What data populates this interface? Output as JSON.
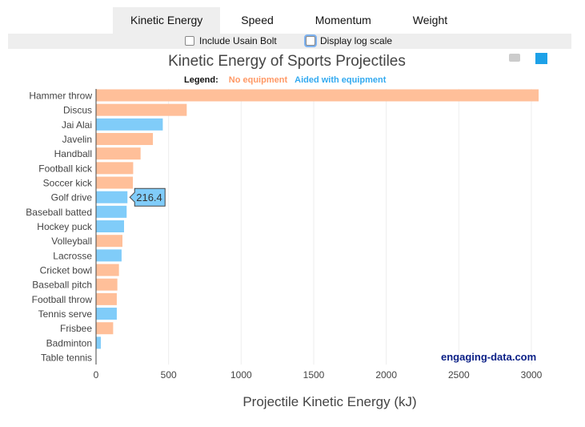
{
  "tabs": [
    {
      "label": "Kinetic Energy",
      "active": true
    },
    {
      "label": "Speed"
    },
    {
      "label": "Momentum"
    },
    {
      "label": "Weight"
    }
  ],
  "options": {
    "include_bolt": "Include Usain Bolt",
    "log_scale": "Display log scale"
  },
  "toolbar": {
    "camera": "camera-icon",
    "chart": "bar-chart-icon"
  },
  "watermark": "engaging-data.com",
  "colors": {
    "no_equipment": "#ffbf99",
    "aided": "#80ccf9",
    "legend_no": "#ff9966",
    "legend_aided": "#33aaf0"
  },
  "chart_data": {
    "type": "bar",
    "orientation": "horizontal",
    "title": "Kinetic Energy of Sports Projectiles",
    "xlabel": "Projectile Kinetic Energy (kJ)",
    "ylabel": "",
    "xlim": [
      0,
      3080
    ],
    "xticks": [
      0,
      500,
      1000,
      1500,
      2000,
      2500,
      3000
    ],
    "grid": true,
    "legend": {
      "title": "Legend:",
      "entries": [
        "No equipment",
        "Aided with equipment"
      ],
      "placement": "top"
    },
    "categories": [
      "Hammer throw",
      "Discus",
      "Jai Alai",
      "Javelin",
      "Handball",
      "Football kick",
      "Soccer kick",
      "Golf drive",
      "Baseball batted",
      "Hockey puck",
      "Volleyball",
      "Lacrosse",
      "Cricket bowl",
      "Baseball pitch",
      "Football throw",
      "Tennis serve",
      "Frisbee",
      "Badminton",
      "Table tennis"
    ],
    "values": [
      3050,
      625,
      460,
      392,
      307,
      256,
      254,
      216.4,
      211,
      193,
      182,
      176,
      158,
      147,
      143,
      143,
      118,
      33,
      0.5
    ],
    "group": [
      "No equipment",
      "No equipment",
      "Aided with equipment",
      "No equipment",
      "No equipment",
      "No equipment",
      "No equipment",
      "Aided with equipment",
      "Aided with equipment",
      "Aided with equipment",
      "No equipment",
      "Aided with equipment",
      "No equipment",
      "No equipment",
      "No equipment",
      "Aided with equipment",
      "No equipment",
      "Aided with equipment",
      "Aided with equipment"
    ],
    "tooltip": {
      "category": "Golf drive",
      "label": "216.4"
    }
  }
}
